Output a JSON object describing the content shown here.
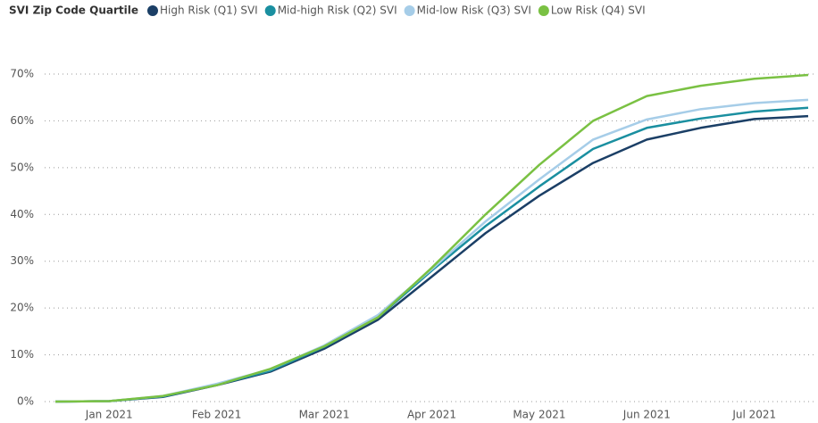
{
  "chart_data": {
    "type": "line",
    "legend_title": "SVI Zip Code Quartile",
    "legend": "top",
    "grid": true,
    "categories": [
      null,
      "Jan 2021",
      null,
      "Feb 2021",
      null,
      "Mar 2021",
      null,
      "Apr 2021",
      null,
      "May 2021",
      null,
      "Jun 2021",
      null,
      "Jul 2021",
      null
    ],
    "ylim": [
      0,
      70
    ],
    "yticks": [
      {
        "value": 0,
        "label": "0%"
      },
      {
        "value": 10,
        "label": "10%"
      },
      {
        "value": 20,
        "label": "20%"
      },
      {
        "value": 30,
        "label": "30%"
      },
      {
        "value": 40,
        "label": "40%"
      },
      {
        "value": 50,
        "label": "50%"
      },
      {
        "value": 60,
        "label": "60%"
      },
      {
        "value": 70,
        "label": "70%"
      }
    ],
    "series": [
      {
        "name": "High Risk (Q1) SVI",
        "color": "#1b3f66",
        "values": [
          0,
          0.1,
          1,
          3.5,
          6.4,
          11.3,
          17.5,
          26.7,
          36,
          44,
          51,
          56,
          58.5,
          60.4,
          61
        ]
      },
      {
        "name": "Mid-high Risk (Q2) SVI",
        "color": "#1a8fa0",
        "values": [
          0,
          0.1,
          1.1,
          3.6,
          6.6,
          11.7,
          18,
          28,
          37.5,
          46,
          54,
          58.5,
          60.5,
          62,
          62.8
        ]
      },
      {
        "name": "Mid-low Risk (Q3) SVI",
        "color": "#a6cde8",
        "values": [
          0,
          0.1,
          1.2,
          3.8,
          6.9,
          12,
          18.5,
          28.3,
          38.5,
          47.5,
          56,
          60.3,
          62.5,
          63.8,
          64.5
        ]
      },
      {
        "name": "Low Risk (Q4) SVI",
        "color": "#7ac143",
        "values": [
          0,
          0.1,
          1.2,
          3.5,
          7,
          11.8,
          18,
          28.6,
          40,
          50.6,
          60,
          65.3,
          67.5,
          69,
          69.8
        ]
      }
    ]
  }
}
